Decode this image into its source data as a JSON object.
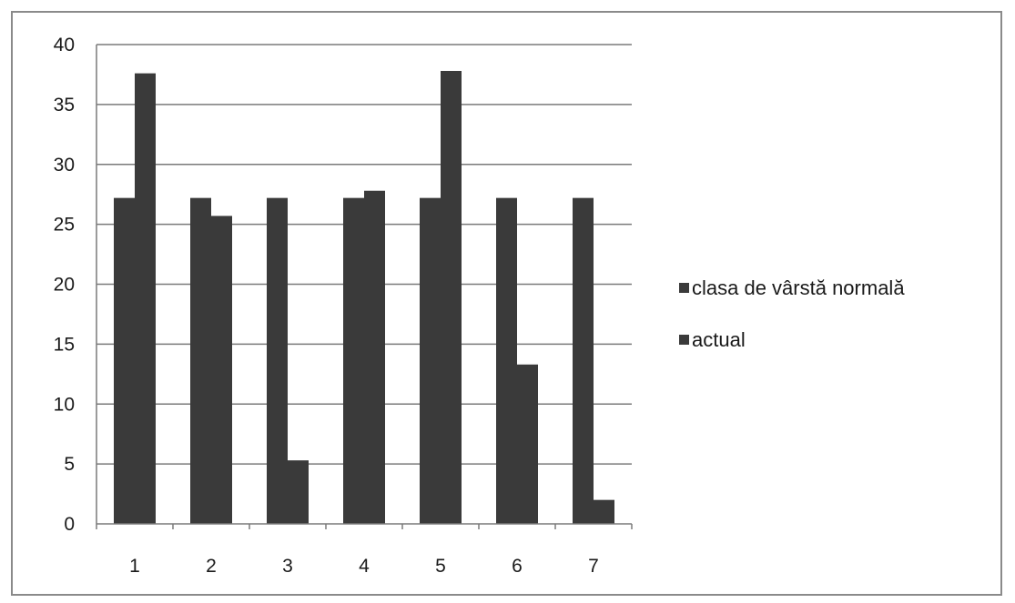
{
  "chart_data": {
    "type": "bar",
    "categories": [
      "1",
      "2",
      "3",
      "4",
      "5",
      "6",
      "7"
    ],
    "series": [
      {
        "name": "clasa de vârstă normală",
        "values": [
          27.2,
          27.2,
          27.2,
          27.2,
          27.2,
          27.2,
          27.2
        ],
        "color": "#3a3a3a"
      },
      {
        "name": "actual",
        "values": [
          37.6,
          25.7,
          5.3,
          27.8,
          37.8,
          13.3,
          2.0
        ],
        "color": "#3a3a3a"
      }
    ],
    "y_ticks": [
      "0",
      "5",
      "10",
      "15",
      "20",
      "25",
      "30",
      "35",
      "40"
    ],
    "ylim": [
      0,
      40
    ],
    "title": "",
    "xlabel": "",
    "ylabel": "",
    "grid": true,
    "legend_position": "right"
  }
}
